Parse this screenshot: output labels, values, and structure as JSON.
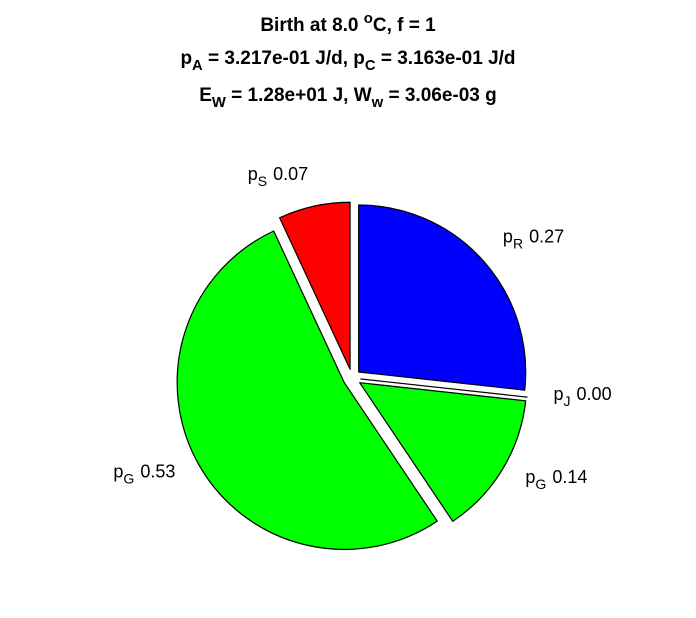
{
  "chart_data": {
    "type": "pie",
    "title": [
      [
        {
          "text": "Birth at 8.0 "
        },
        {
          "text": "o",
          "shift": "super"
        },
        {
          "text": "C, f = 1"
        }
      ],
      [
        {
          "text": "p"
        },
        {
          "text": "A",
          "shift": "sub"
        },
        {
          "text": " = 3.217e-01 J/d, p"
        },
        {
          "text": "C",
          "shift": "sub"
        },
        {
          "text": " = 3.163e-01 J/d"
        }
      ],
      [
        {
          "text": "E"
        },
        {
          "text": "W",
          "shift": "sub"
        },
        {
          "text": " = 1.28e+01 J, W"
        },
        {
          "text": "w",
          "shift": "sub"
        },
        {
          "text": " = 3.06e-03 g"
        }
      ]
    ],
    "categories": [
      [
        {
          "text": "p"
        },
        {
          "text": "R",
          "shift": "sub"
        }
      ],
      [
        {
          "text": "p"
        },
        {
          "text": "J",
          "shift": "sub"
        }
      ],
      [
        {
          "text": "p"
        },
        {
          "text": "G",
          "shift": "sub"
        }
      ],
      [
        {
          "text": "p"
        },
        {
          "text": "G",
          "shift": "sub"
        }
      ],
      [
        {
          "text": "p"
        },
        {
          "text": "S",
          "shift": "sub"
        }
      ]
    ],
    "values": [
      0.27,
      0.0,
      0.14,
      0.53,
      0.07
    ],
    "value_labels": [
      "0.27",
      "0.00",
      "0.14",
      "0.53",
      "0.07"
    ],
    "colors": [
      "#0000ff",
      "#ffffff",
      "#00ff00",
      "#00ff00",
      "#ff0000"
    ],
    "explode": true
  }
}
